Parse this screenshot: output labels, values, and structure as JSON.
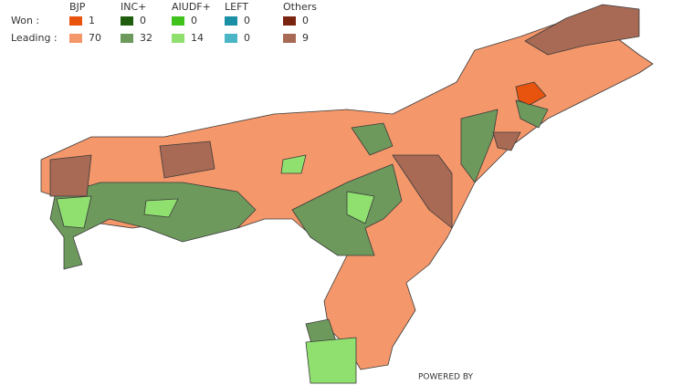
{
  "legend": {
    "rows": [
      "Won :",
      "Leading :"
    ],
    "parties": [
      {
        "name": "BJP",
        "won": 1,
        "leading": 70,
        "won_color": "#e8540e",
        "leading_color": "#f4976a"
      },
      {
        "name": "INC+",
        "won": 0,
        "leading": 32,
        "won_color": "#1e5e0e",
        "leading_color": "#6d9a5c"
      },
      {
        "name": "AIUDF+",
        "won": 0,
        "leading": 14,
        "won_color": "#3fc21c",
        "leading_color": "#90e070"
      },
      {
        "name": "LEFT",
        "won": 0,
        "leading": 0,
        "won_color": "#1a8fa5",
        "leading_color": "#4ab5c5"
      },
      {
        "name": "Others",
        "won": 0,
        "leading": 9,
        "won_color": "#7a2410",
        "leading_color": "#a86a55"
      }
    ]
  },
  "footer": "POWERED BY"
}
